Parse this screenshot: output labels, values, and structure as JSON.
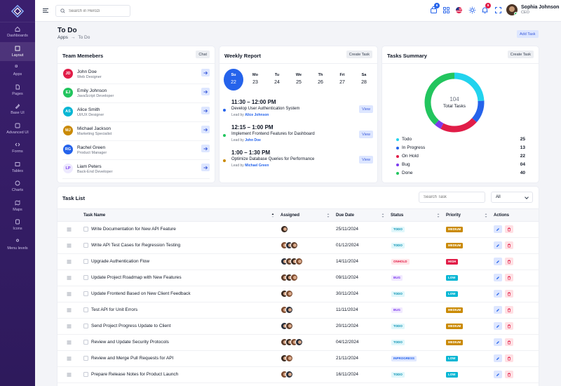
{
  "sidebar": {
    "items": [
      {
        "label": "Dashboards",
        "icon": "home-icon"
      },
      {
        "label": "Layout",
        "icon": "layout-icon",
        "active": true
      },
      {
        "label": "Apps",
        "icon": "apps-icon"
      },
      {
        "label": "Pages",
        "icon": "pages-icon"
      },
      {
        "label": "Base UI",
        "icon": "base-ui-icon"
      },
      {
        "label": "Advanced UI",
        "icon": "advanced-ui-icon"
      },
      {
        "label": "Forms",
        "icon": "forms-icon"
      },
      {
        "label": "Tables",
        "icon": "tables-icon"
      },
      {
        "label": "Charts",
        "icon": "charts-icon"
      },
      {
        "label": "Maps",
        "icon": "maps-icon"
      },
      {
        "label": "Icons",
        "icon": "icons-icon"
      },
      {
        "label": "Menu levels",
        "icon": "menu-levels-icon"
      }
    ]
  },
  "header": {
    "search_placeholder": "Search in Herozi",
    "cart_badge": "6",
    "notification_badge": "9",
    "user_name": "Sophia Johnson",
    "user_role": "CEO"
  },
  "page": {
    "title": "To Do",
    "breadcrumb_root": "Apps",
    "breadcrumb_current": "To Do",
    "add_task_label": "Add Task"
  },
  "team": {
    "title": "Team Memebers",
    "button": "Chat",
    "members": [
      {
        "initials": "JD",
        "name": "John Doe",
        "role": "Web Designer",
        "color": "#e11d48"
      },
      {
        "initials": "EJ",
        "name": "Emily Johnson",
        "role": "JavaScript Developer",
        "color": "#22c55e"
      },
      {
        "initials": "AS",
        "name": "Alice Smith",
        "role": "UI/UX Designer",
        "color": "#06b6d4"
      },
      {
        "initials": "MJ",
        "name": "Michael Jackson",
        "role": "Marketing Specialist",
        "color": "#ca8a04"
      },
      {
        "initials": "RG",
        "name": "Rachel Green",
        "role": "Product Manager",
        "color": "#2563eb"
      },
      {
        "initials": "LP",
        "name": "Liam Peters",
        "role": "Back-End Developer",
        "color": "#ede9fe",
        "text_color": "#7c3aed"
      }
    ]
  },
  "weekly": {
    "title": "Weekly Report",
    "button": "Create Task",
    "days": [
      {
        "name": "Su",
        "date": "22",
        "selected": true
      },
      {
        "name": "Mo",
        "date": "23"
      },
      {
        "name": "Tu",
        "date": "24"
      },
      {
        "name": "We",
        "date": "25"
      },
      {
        "name": "Th",
        "date": "26"
      },
      {
        "name": "Fri",
        "date": "27"
      },
      {
        "name": "Sa",
        "date": "28"
      }
    ],
    "events": [
      {
        "time": "11:30 – 12:00 PM",
        "name": "Develop User Authentication System",
        "lead_prefix": "Lead by",
        "lead": "Alice Johnson",
        "button": "View",
        "color": "#2563eb"
      },
      {
        "time": "12:15 – 1:00 PM",
        "name": "Implement Frontend Features for Dashboard",
        "lead_prefix": "Lead by",
        "lead": "John Doe",
        "button": "View",
        "color": "#22c55e"
      },
      {
        "time": "1:00 – 1:30 PM",
        "name": "Optimize Database Queries for Performance",
        "lead_prefix": "Lead by",
        "lead": "Michael Green",
        "button": "View",
        "color": "#ca8a04"
      }
    ]
  },
  "summary": {
    "title": "Tasks Summary",
    "button": "Create Task",
    "total": "104",
    "total_label": "Total Tasks",
    "items": [
      {
        "label": "Todo",
        "value": "25",
        "color": "#22d3ee"
      },
      {
        "label": "In Progress",
        "value": "13",
        "color": "#2563eb"
      },
      {
        "label": "On Hold",
        "value": "22",
        "color": "#e11d48"
      },
      {
        "label": "Bug",
        "value": "04",
        "color": "#7c3aed"
      },
      {
        "label": "Done",
        "value": "40",
        "color": "#22c55e"
      }
    ]
  },
  "tasklist": {
    "title": "Task List",
    "search_placeholder": "Search Task",
    "filter_value": "All",
    "columns": {
      "name": "Task Name",
      "assigned": "Assigned",
      "due": "Due Date",
      "status": "Status",
      "priority": "Priority",
      "actions": "Actions"
    },
    "rows": [
      {
        "name": "Write Documentation for New API Feature",
        "avatars": 1,
        "due": "25/11/2024",
        "status": "TODO",
        "priority": "MEDIUM"
      },
      {
        "name": "Write API Test Cases for Regression Testing",
        "avatars": 3,
        "due": "01/12/2024",
        "status": "TODO",
        "priority": "MEDIUM"
      },
      {
        "name": "Upgrade Authentication Flow",
        "avatars": 4,
        "due": "14/11/2024",
        "status": "ONHOLD",
        "priority": "HIGH"
      },
      {
        "name": "Update Project Roadmap with New Features",
        "avatars": 3,
        "due": "09/11/2024",
        "status": "BUG",
        "priority": "LOW"
      },
      {
        "name": "Update Frontend Based on New Client Feedback",
        "avatars": 2,
        "due": "30/11/2024",
        "status": "TODO",
        "priority": "LOW"
      },
      {
        "name": "Test API for Unit Errors",
        "avatars": 2,
        "due": "11/11/2024",
        "status": "BUG",
        "priority": "MEDIUM"
      },
      {
        "name": "Send Project Progress Update to Client",
        "avatars": 2,
        "due": "20/11/2024",
        "status": "TODO",
        "priority": "MEDIUM"
      },
      {
        "name": "Review and Update Security Protocols",
        "avatars": 4,
        "due": "04/12/2024",
        "status": "TODO",
        "priority": "MEDIUM"
      },
      {
        "name": "Review and Merge Pull Requests for API",
        "avatars": 2,
        "due": "21/11/2024",
        "status": "INPROGRESS",
        "priority": "LOW"
      },
      {
        "name": "Prepare Release Notes for Product Launch",
        "avatars": 2,
        "due": "16/11/2024",
        "status": "TODO",
        "priority": "LOW"
      }
    ]
  },
  "colors": {
    "status": {
      "TODO": [
        "#e0f7fb",
        "#0891b2"
      ],
      "ONHOLD": [
        "#ffe4e8",
        "#e11d48"
      ],
      "BUG": [
        "#f1e9ff",
        "#7c3aed"
      ],
      "INPROGRESS": [
        "#e0e8ff",
        "#2563eb"
      ]
    },
    "priority": {
      "MEDIUM": "#ca8a04",
      "HIGH": "#e11d48",
      "LOW": "#06b6d4"
    }
  }
}
